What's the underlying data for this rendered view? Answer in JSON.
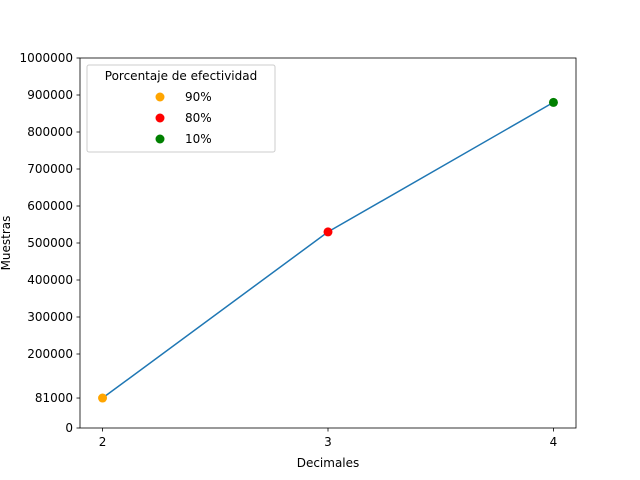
{
  "chart_data": {
    "type": "line",
    "title": "",
    "xlabel": "Decimales",
    "ylabel": "Muestras",
    "xlim": [
      1.9,
      4.1
    ],
    "ylim": [
      0,
      1000000
    ],
    "x_ticks": [
      2,
      3,
      4
    ],
    "x_tick_labels": [
      "2",
      "3",
      "4"
    ],
    "y_ticks": [
      0,
      81000,
      200000,
      300000,
      400000,
      500000,
      600000,
      700000,
      800000,
      900000,
      1000000
    ],
    "y_tick_labels": [
      "0",
      "81000",
      "200000",
      "300000",
      "400000",
      "500000",
      "600000",
      "700000",
      "800000",
      "900000",
      "1000000"
    ],
    "grid": false,
    "line": {
      "color": "#1f77b4",
      "x": [
        2,
        3,
        4
      ],
      "y": [
        81000,
        530000,
        880000
      ]
    },
    "points": [
      {
        "x": 2,
        "y": 81000,
        "label": "90%",
        "color": "#ffa500"
      },
      {
        "x": 3,
        "y": 530000,
        "label": "80%",
        "color": "#ff0000"
      },
      {
        "x": 4,
        "y": 880000,
        "label": "10%",
        "color": "#008000"
      }
    ],
    "legend": {
      "title": "Porcentaje de efectividad",
      "placement": "top-left"
    }
  }
}
